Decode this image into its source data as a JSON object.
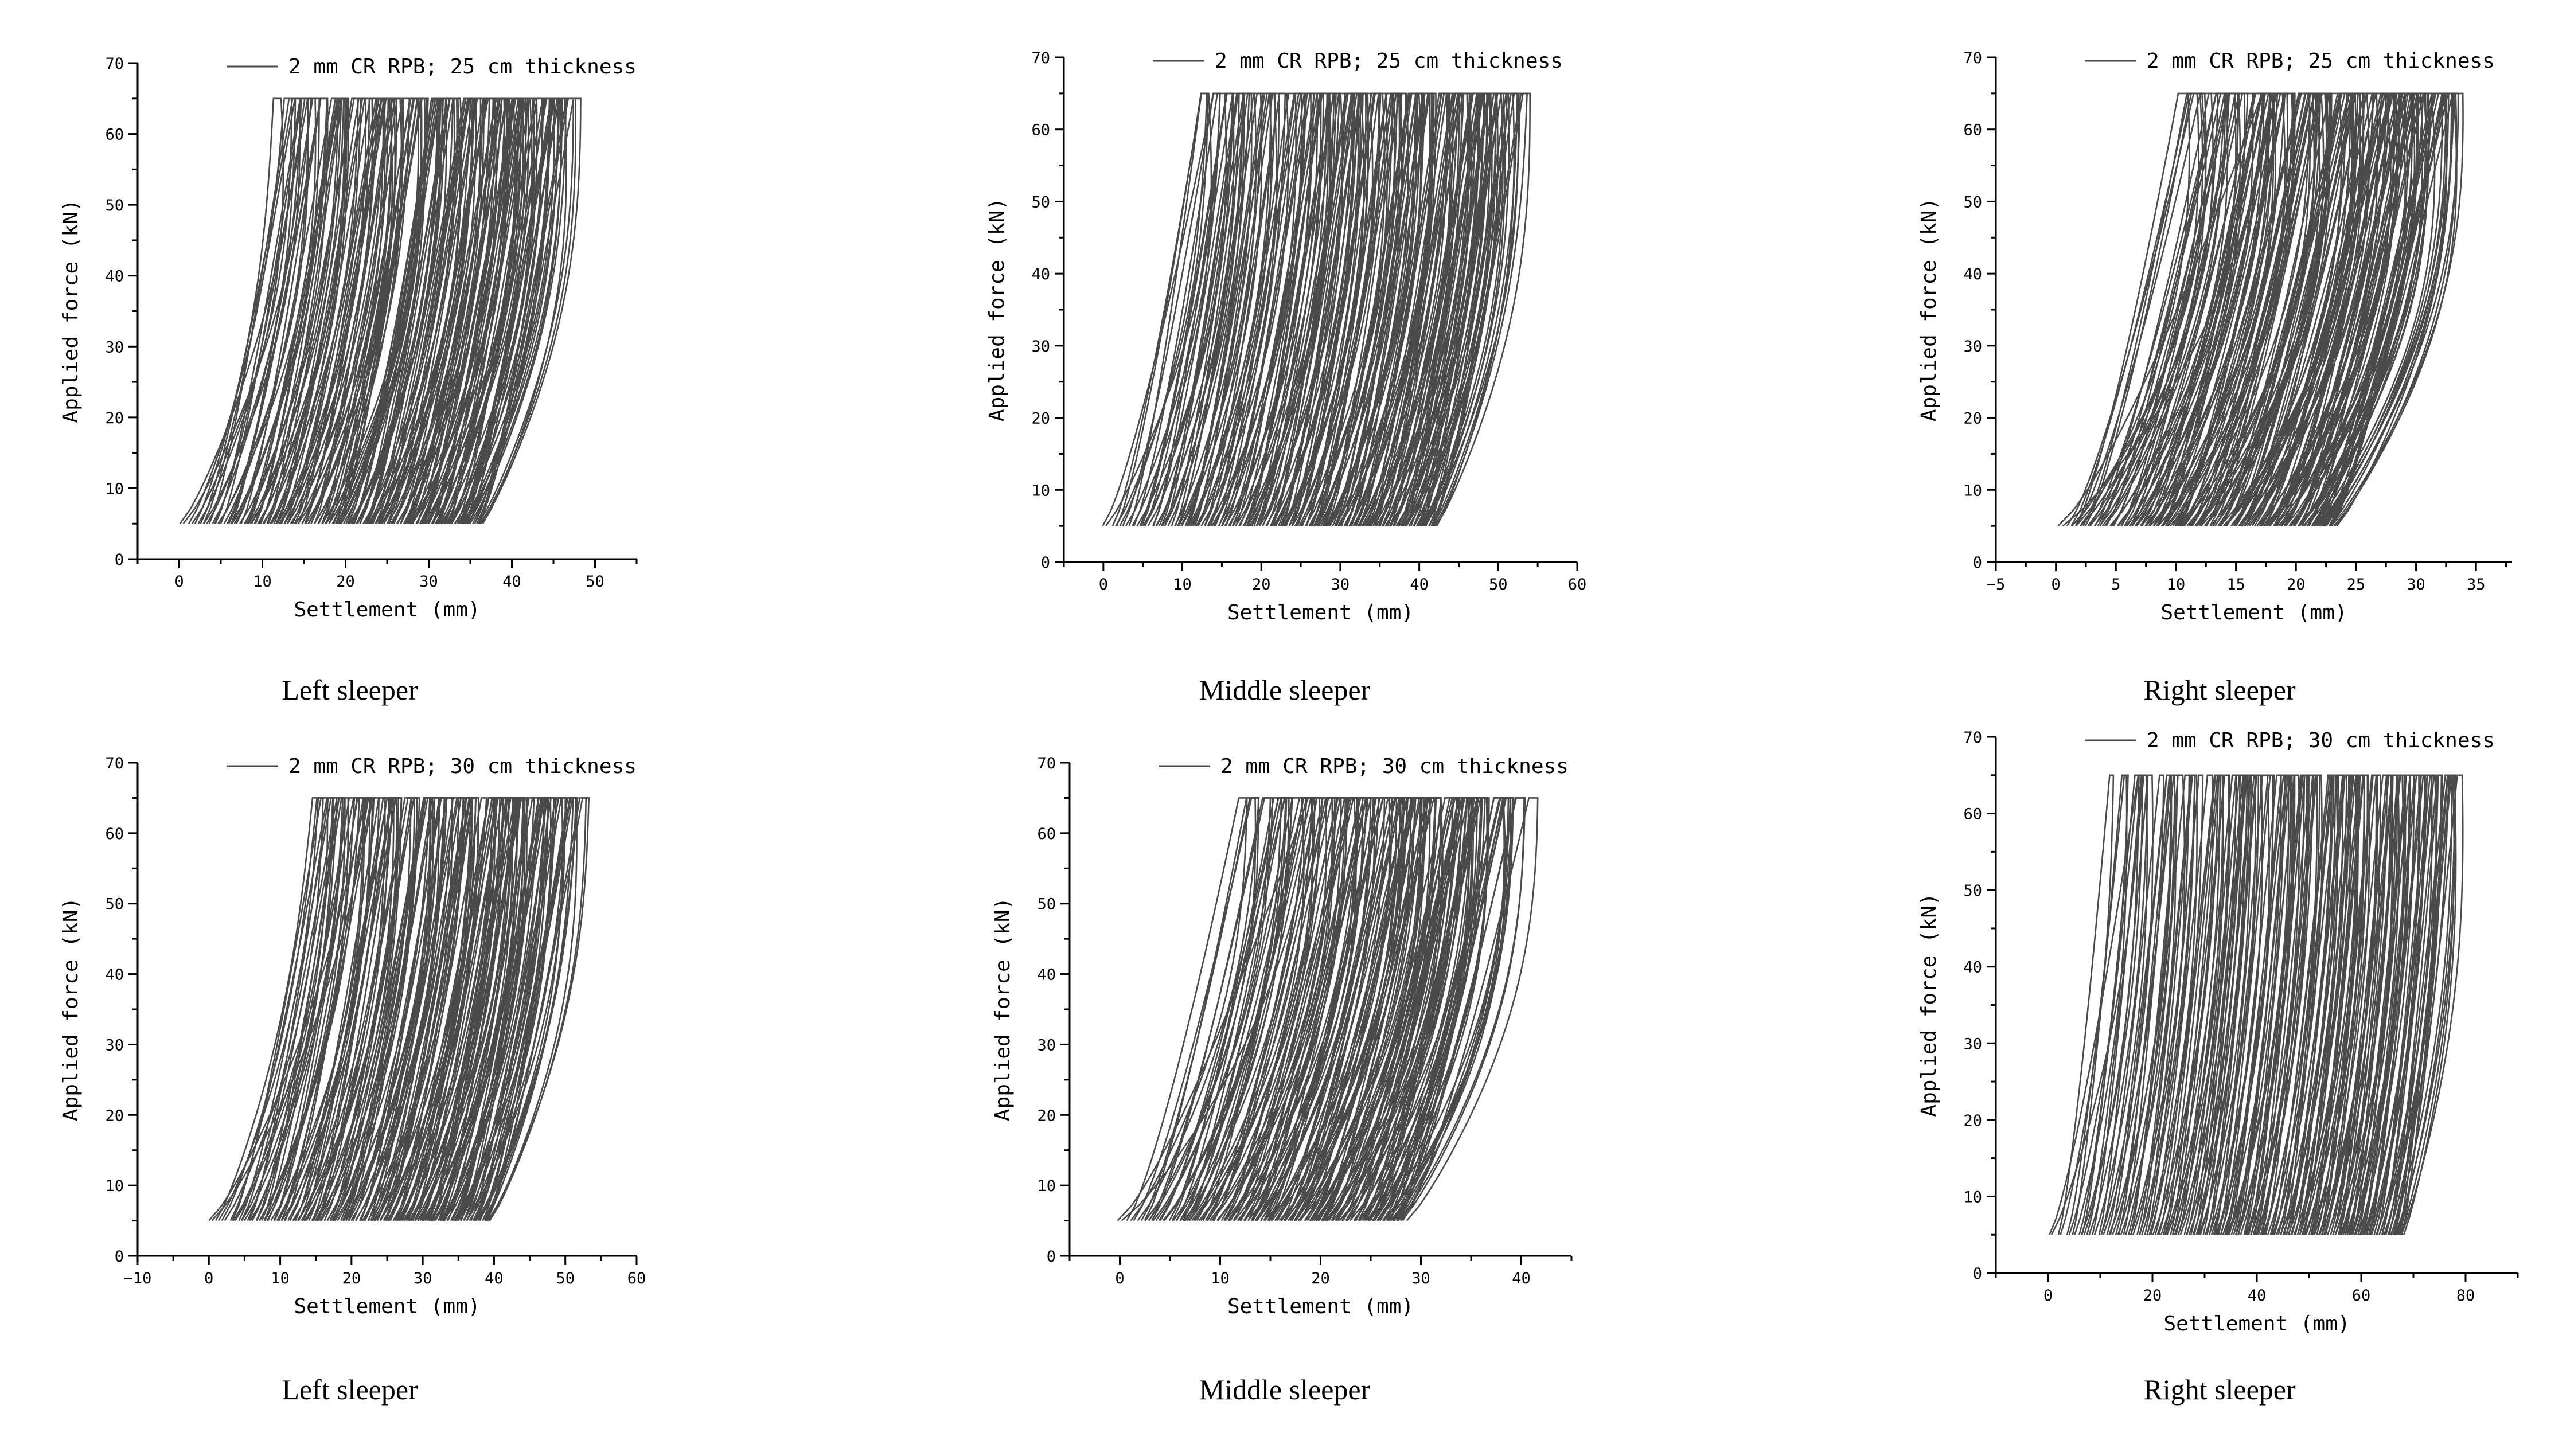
{
  "figure": {
    "chart_data": [
      {
        "id": "a",
        "type": "line",
        "caption": "Left sleeper",
        "legend": "2 mm CR RPB; 25 cm thickness",
        "xlabel": "Settlement (mm)",
        "ylabel": "Applied force (kN)",
        "xlim": [
          -5,
          55
        ],
        "ylim": [
          0,
          70
        ],
        "xticks": [
          0,
          10,
          20,
          30,
          40,
          50
        ],
        "yticks": [
          0,
          10,
          20,
          30,
          40,
          50,
          60,
          70
        ],
        "force_min": 5,
        "force_max": 65,
        "loops": {
          "first_start": 0,
          "last_start": 36,
          "count": 110,
          "first_width": 15,
          "typical_width": 10,
          "knee": true
        }
      },
      {
        "id": "b",
        "type": "line",
        "caption": "Middle sleeper",
        "legend": "2 mm CR RPB; 25 cm thickness",
        "xlabel": "Settlement (mm)",
        "ylabel": "Applied force (kN)",
        "xlim": [
          -5,
          60
        ],
        "ylim": [
          0,
          70
        ],
        "xticks": [
          0,
          10,
          20,
          30,
          40,
          50,
          60
        ],
        "yticks": [
          0,
          10,
          20,
          30,
          40,
          50,
          60,
          70
        ],
        "force_min": 5,
        "force_max": 65,
        "loops": {
          "first_start": 0,
          "last_start": 42,
          "count": 120,
          "first_width": 14,
          "typical_width": 10,
          "knee": false
        }
      },
      {
        "id": "c",
        "type": "line",
        "caption": "Right sleeper",
        "legend": "2 mm CR RPB; 25 cm thickness",
        "xlabel": "Settlement (mm)",
        "ylabel": "Applied force (kN)",
        "xlim": [
          -5,
          38
        ],
        "ylim": [
          0,
          70
        ],
        "xticks": [
          -5,
          0,
          5,
          10,
          15,
          20,
          25,
          30,
          35
        ],
        "yticks": [
          0,
          10,
          20,
          30,
          40,
          50,
          60,
          70
        ],
        "force_min": 5,
        "force_max": 65,
        "loops": {
          "first_start": 0,
          "last_start": 23,
          "count": 110,
          "first_width": 17,
          "typical_width": 9.5,
          "knee": false
        }
      },
      {
        "id": "d",
        "type": "line",
        "caption": "Left sleeper",
        "legend": "2 mm CR RPB; 30 cm thickness",
        "xlabel": "Settlement (mm)",
        "ylabel": "Applied force (kN)",
        "xlim": [
          -10,
          60
        ],
        "ylim": [
          0,
          70
        ],
        "xticks": [
          -10,
          0,
          10,
          20,
          30,
          40,
          50,
          60
        ],
        "yticks": [
          0,
          10,
          20,
          30,
          40,
          50,
          60,
          70
        ],
        "force_min": 5,
        "force_max": 65,
        "loops": {
          "first_start": 0,
          "last_start": 39,
          "count": 100,
          "first_width": 22,
          "typical_width": 12,
          "knee": true
        }
      },
      {
        "id": "e",
        "type": "line",
        "caption": "Middle sleeper",
        "legend": "2 mm CR RPB; 30 cm thickness",
        "xlabel": "Settlement (mm)",
        "ylabel": "Applied force (kN)",
        "xlim": [
          -5,
          45
        ],
        "ylim": [
          0,
          70
        ],
        "xticks": [
          0,
          10,
          20,
          30,
          40
        ],
        "yticks": [
          0,
          10,
          20,
          30,
          40,
          50,
          60,
          70
        ],
        "force_min": 5,
        "force_max": 65,
        "loops": {
          "first_start": 0,
          "last_start": 28,
          "count": 100,
          "first_width": 19,
          "typical_width": 11,
          "knee": false
        }
      },
      {
        "id": "f",
        "type": "line",
        "caption": "Right sleeper",
        "legend": "2 mm CR RPB; 30 cm thickness",
        "xlabel": "Settlement (mm)",
        "ylabel": "Applied force (kN)",
        "xlim": [
          -10,
          90
        ],
        "ylim": [
          0,
          70
        ],
        "xticks": [
          0,
          20,
          40,
          60,
          80
        ],
        "yticks": [
          0,
          10,
          20,
          30,
          40,
          50,
          60,
          70
        ],
        "force_min": 5,
        "force_max": 65,
        "loops": {
          "first_start": 0,
          "last_start": 68,
          "count": 110,
          "first_width": 17,
          "typical_width": 10,
          "knee": false
        }
      }
    ]
  }
}
